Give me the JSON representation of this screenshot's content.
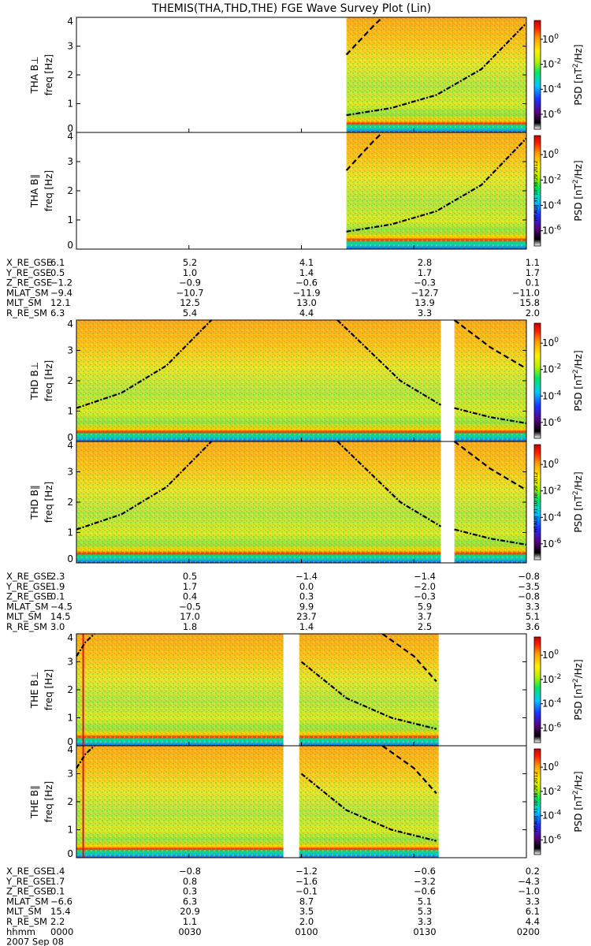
{
  "title": "THEMIS(THA,THD,THE) FGE Wave Survey Plot (Lin)",
  "colors": {
    "cbar": [
      "#ffffff",
      "#000000",
      "#5a0082",
      "#1e32ff",
      "#00c8ff",
      "#00e664",
      "#b4f000",
      "#fff000",
      "#ff9b00",
      "#ff1e00",
      "#c80000"
    ],
    "bg_white": "#ffffff",
    "line_black": "#000000",
    "gap_white": "#ffffff"
  },
  "colorbar": {
    "label_main": "PSD [nT",
    "label_exp": "2",
    "label_end": "/Hz]",
    "ticks": [
      {
        "base": "10",
        "exp": "0",
        "v": 0
      },
      {
        "base": "10",
        "exp": "-2",
        "v": -2
      },
      {
        "base": "10",
        "exp": "-4",
        "v": -4
      },
      {
        "base": "10",
        "exp": "-6",
        "v": -6
      }
    ],
    "stamp": "Fri Aug 31 10:38:29 2012"
  },
  "ylabel_sub": "freq [Hz]",
  "chart_data": [
    {
      "type": "heatmap",
      "group": "THA",
      "panels": [
        {
          "name": "THA B⊥",
          "ylim": [
            0,
            4
          ],
          "yticks": [
            "0",
            "1",
            "2",
            "3",
            "4"
          ],
          "data_start": 0.6,
          "data_end": 1.0,
          "curves": [
            {
              "style": "dashdot",
              "points": [
                [
                  0.6,
                  0.6
                ],
                [
                  0.7,
                  0.85
                ],
                [
                  0.8,
                  1.3
                ],
                [
                  0.9,
                  2.2
                ],
                [
                  1.0,
                  3.8
                ]
              ]
            },
            {
              "style": "dash",
              "points": [
                [
                  0.6,
                  2.7
                ],
                [
                  0.63,
                  3.2
                ],
                [
                  0.66,
                  3.7
                ],
                [
                  0.68,
                  4.0
                ]
              ]
            }
          ]
        },
        {
          "name": "THA B∥",
          "ylim": [
            0,
            4
          ],
          "yticks": [
            "0",
            "1",
            "2",
            "3",
            "4"
          ],
          "data_start": 0.6,
          "data_end": 1.0,
          "curves": [
            {
              "style": "dashdot",
              "points": [
                [
                  0.6,
                  0.6
                ],
                [
                  0.7,
                  0.85
                ],
                [
                  0.8,
                  1.3
                ],
                [
                  0.9,
                  2.2
                ],
                [
                  1.0,
                  3.8
                ]
              ]
            },
            {
              "style": "dash",
              "points": [
                [
                  0.6,
                  2.7
                ],
                [
                  0.63,
                  3.2
                ],
                [
                  0.66,
                  3.7
                ],
                [
                  0.68,
                  4.0
                ]
              ]
            }
          ]
        }
      ],
      "ephemeris": [
        {
          "label": "X_RE_GSE",
          "values": [
            "6.1",
            "5.2",
            "4.1",
            "2.8",
            "1.1"
          ]
        },
        {
          "label": "Y_RE_GSE",
          "values": [
            "0.5",
            "1.0",
            "1.4",
            "1.7",
            "1.7"
          ]
        },
        {
          "label": "Z_RE_GSE",
          "values": [
            "−1.2",
            "−0.9",
            "−0.6",
            "−0.3",
            "0.1"
          ]
        },
        {
          "label": "MLAT_SM",
          "values": [
            "−9.4",
            "−10.7",
            "−11.9",
            "−12.7",
            "−11.0"
          ]
        },
        {
          "label": "MLT_SM",
          "values": [
            "12.1",
            "12.5",
            "13.0",
            "13.9",
            "15.8"
          ]
        },
        {
          "label": "R_RE_SM",
          "values": [
            "6.3",
            "5.4",
            "4.4",
            "3.3",
            "2.0"
          ]
        }
      ]
    },
    {
      "type": "heatmap",
      "group": "THD",
      "panels": [
        {
          "name": "THD B⊥",
          "ylim": [
            0,
            4
          ],
          "yticks": [
            "0",
            "1",
            "2",
            "3",
            "4"
          ],
          "data_start": 0.0,
          "data_end": 1.0,
          "gap": [
            0.81,
            0.84
          ],
          "curves": [
            {
              "style": "dashdot",
              "points": [
                [
                  0.0,
                  1.1
                ],
                [
                  0.1,
                  1.6
                ],
                [
                  0.2,
                  2.5
                ],
                [
                  0.3,
                  4.0
                ]
              ]
            },
            {
              "style": "dashdot",
              "points": [
                [
                  0.58,
                  4.0
                ],
                [
                  0.65,
                  3.0
                ],
                [
                  0.72,
                  2.0
                ],
                [
                  0.81,
                  1.2
                ]
              ]
            },
            {
              "style": "dashdot",
              "points": [
                [
                  0.84,
                  1.1
                ],
                [
                  0.92,
                  0.8
                ],
                [
                  1.0,
                  0.6
                ]
              ]
            },
            {
              "style": "dash",
              "points": [
                [
                  0.84,
                  4.0
                ],
                [
                  0.92,
                  3.1
                ],
                [
                  1.0,
                  2.4
                ]
              ]
            }
          ]
        },
        {
          "name": "THD B∥",
          "ylim": [
            0,
            4
          ],
          "yticks": [
            "0",
            "1",
            "2",
            "3",
            "4"
          ],
          "data_start": 0.0,
          "data_end": 1.0,
          "gap": [
            0.81,
            0.84
          ],
          "curves": [
            {
              "style": "dashdot",
              "points": [
                [
                  0.0,
                  1.1
                ],
                [
                  0.1,
                  1.6
                ],
                [
                  0.2,
                  2.5
                ],
                [
                  0.3,
                  4.0
                ]
              ]
            },
            {
              "style": "dashdot",
              "points": [
                [
                  0.58,
                  4.0
                ],
                [
                  0.65,
                  3.0
                ],
                [
                  0.72,
                  2.0
                ],
                [
                  0.81,
                  1.2
                ]
              ]
            },
            {
              "style": "dashdot",
              "points": [
                [
                  0.84,
                  1.1
                ],
                [
                  0.92,
                  0.8
                ],
                [
                  1.0,
                  0.6
                ]
              ]
            },
            {
              "style": "dash",
              "points": [
                [
                  0.84,
                  4.0
                ],
                [
                  0.92,
                  3.1
                ],
                [
                  1.0,
                  2.4
                ]
              ]
            }
          ]
        }
      ],
      "ephemeris": [
        {
          "label": "X_RE_GSE",
          "values": [
            "2.3",
            "0.5",
            "−1.4",
            "−1.4",
            "−0.8"
          ]
        },
        {
          "label": "Y_RE_GSE",
          "values": [
            "1.9",
            "1.7",
            "0.0",
            "−2.0",
            "−3.5"
          ]
        },
        {
          "label": "Z_RE_GSE",
          "values": [
            "0.1",
            "0.4",
            "0.3",
            "−0.3",
            "−0.8"
          ]
        },
        {
          "label": "MLAT_SM",
          "values": [
            "−4.5",
            "−0.5",
            "9.9",
            "5.9",
            "3.3"
          ]
        },
        {
          "label": "MLT_SM",
          "values": [
            "14.5",
            "17.0",
            "23.7",
            "3.7",
            "5.1"
          ]
        },
        {
          "label": "R_RE_SM",
          "values": [
            "3.0",
            "1.8",
            "1.4",
            "2.5",
            "3.6"
          ]
        }
      ]
    },
    {
      "type": "heatmap",
      "group": "THE",
      "panels": [
        {
          "name": "THE B⊥",
          "ylim": [
            0,
            4
          ],
          "yticks": [
            "0",
            "1",
            "2",
            "3",
            "4"
          ],
          "data_start": 0.0,
          "data_end": 0.805,
          "gap": [
            0.46,
            0.495
          ],
          "redline": 0.015,
          "curves": [
            {
              "style": "dashdot",
              "points": [
                [
                  0.0,
                  3.2
                ],
                [
                  0.02,
                  3.7
                ],
                [
                  0.04,
                  4.0
                ]
              ]
            },
            {
              "style": "dashdot",
              "points": [
                [
                  0.5,
                  3.0
                ],
                [
                  0.6,
                  1.7
                ],
                [
                  0.7,
                  1.0
                ],
                [
                  0.8,
                  0.6
                ]
              ]
            },
            {
              "style": "dash",
              "points": [
                [
                  0.68,
                  4.0
                ],
                [
                  0.75,
                  3.2
                ],
                [
                  0.8,
                  2.3
                ]
              ]
            }
          ]
        },
        {
          "name": "THE B∥",
          "ylim": [
            0,
            4
          ],
          "yticks": [
            "0",
            "1",
            "2",
            "3",
            "4"
          ],
          "data_start": 0.0,
          "data_end": 0.805,
          "gap": [
            0.46,
            0.495
          ],
          "redline": 0.015,
          "curves": [
            {
              "style": "dashdot",
              "points": [
                [
                  0.0,
                  3.2
                ],
                [
                  0.02,
                  3.7
                ],
                [
                  0.04,
                  4.0
                ]
              ]
            },
            {
              "style": "dashdot",
              "points": [
                [
                  0.5,
                  3.0
                ],
                [
                  0.6,
                  1.7
                ],
                [
                  0.7,
                  1.0
                ],
                [
                  0.8,
                  0.6
                ]
              ]
            },
            {
              "style": "dash",
              "points": [
                [
                  0.68,
                  4.0
                ],
                [
                  0.75,
                  3.2
                ],
                [
                  0.8,
                  2.3
                ]
              ]
            }
          ]
        }
      ],
      "ephemeris": [
        {
          "label": "X_RE_GSE",
          "values": [
            "1.4",
            "−0.8",
            "−1.2",
            "−0.6",
            "0.2"
          ]
        },
        {
          "label": "Y_RE_GSE",
          "values": [
            "1.7",
            "0.8",
            "−1.6",
            "−3.2",
            "−4.3"
          ]
        },
        {
          "label": "Z_RE_GSE",
          "values": [
            "0.1",
            "0.3",
            "−0.1",
            "−0.6",
            "−1.0"
          ]
        },
        {
          "label": "MLAT_SM",
          "values": [
            "−6.6",
            "6.3",
            "8.7",
            "5.1",
            "3.3"
          ]
        },
        {
          "label": "MLT_SM",
          "values": [
            "15.4",
            "20.9",
            "3.5",
            "5.3",
            "6.1"
          ]
        },
        {
          "label": "R_RE_SM",
          "values": [
            "2.2",
            "1.1",
            "2.0",
            "3.3",
            "4.4"
          ]
        },
        {
          "label": "hhmm",
          "values": [
            "0000",
            "0030",
            "0100",
            "0130",
            "0200"
          ]
        }
      ],
      "date": "2007 Sep 08"
    }
  ]
}
